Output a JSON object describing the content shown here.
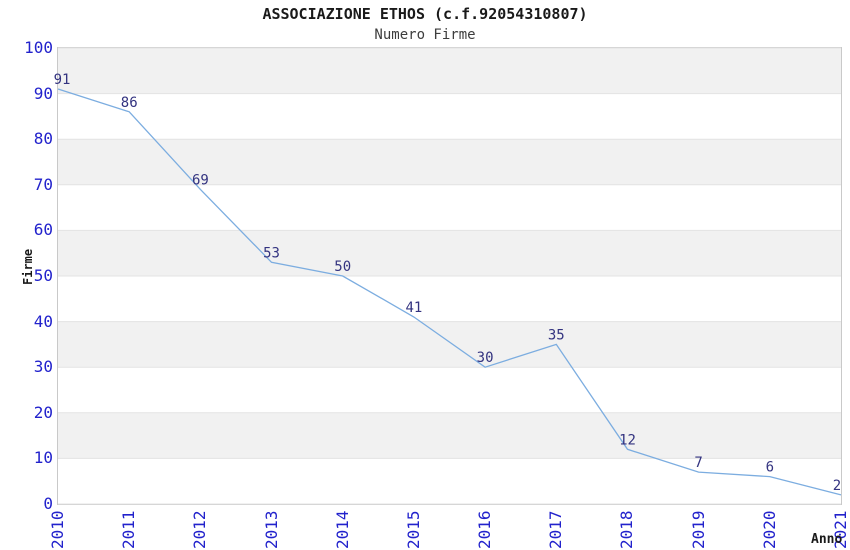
{
  "chart": {
    "title": "ASSOCIAZIONE ETHOS (c.f.92054310807)",
    "subtitle": "Numero Firme",
    "ylabel": "Firme",
    "xlabel": "Anno"
  },
  "chart_data": {
    "type": "line",
    "title": "ASSOCIAZIONE ETHOS (c.f.92054310807)",
    "subtitle": "Numero Firme",
    "xlabel": "Anno",
    "ylabel": "Firme",
    "categories": [
      "2010",
      "2011",
      "2012",
      "2013",
      "2014",
      "2015",
      "2016",
      "2017",
      "2018",
      "2019",
      "2020",
      "2021"
    ],
    "series": [
      {
        "name": "Numero Firme",
        "values": [
          91,
          86,
          69,
          53,
          50,
          41,
          30,
          35,
          12,
          7,
          6,
          2
        ]
      }
    ],
    "point_labels": [
      91,
      86,
      69,
      53,
      50,
      41,
      30,
      35,
      12,
      7,
      6,
      2
    ],
    "ylim": [
      0,
      100
    ],
    "yticks": [
      0,
      10,
      20,
      30,
      40,
      50,
      60,
      70,
      80,
      90,
      100
    ],
    "grid": "horizontal-bands",
    "legend_position": "none"
  },
  "colors": {
    "line": "#7cade0",
    "axis_tick_label": "#2222cc",
    "point_label": "#333380",
    "band_fill": "#f1f1f1",
    "gridline": "#e3e3e3",
    "plot_border": "#c9c9c9",
    "title_text": "#1a1a1a",
    "subtitle_text": "#3d3d3d"
  }
}
